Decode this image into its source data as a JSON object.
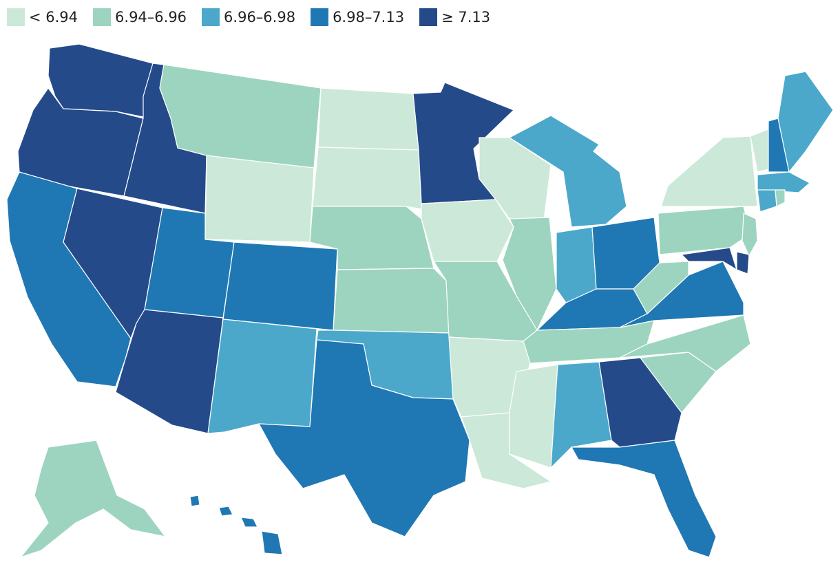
{
  "legend": [
    {
      "label": "< 6.94",
      "color": "#cce8d8"
    },
    {
      "label": "6.94–6.96",
      "color": "#9dd4c0"
    },
    {
      "label": "6.96–6.98",
      "color": "#4ba8cb"
    },
    {
      "label": "6.98–7.13",
      "color": "#1f78b4"
    },
    {
      "label": "≥ 7.13",
      "color": "#244a8a"
    }
  ],
  "states": {
    "WA": 4,
    "OR": 4,
    "ID": 4,
    "NV": 4,
    "AZ": 4,
    "MN": 4,
    "GA": 4,
    "MD": 4,
    "DE": 4,
    "CA": 3,
    "UT": 3,
    "CO": 3,
    "TX": 3,
    "OH": 3,
    "KY": 3,
    "VA": 3,
    "FL": 3,
    "NH": 3,
    "HI": 3,
    "NJ_coast": 3,
    "NM": 2,
    "OK": 2,
    "AL": 2,
    "IN": 2,
    "MI": 2,
    "ME": 2,
    "MA": 2,
    "CT": 2,
    "MT": 1,
    "NE": 1,
    "KS": 1,
    "MO": 1,
    "IL": 1,
    "TN": 1,
    "NC": 1,
    "SC": 1,
    "PA": 1,
    "WV": 1,
    "NJ": 1,
    "AK": 1,
    "RI": 1,
    "ND": 0,
    "SD": 0,
    "WY": 0,
    "WI": 0,
    "IA": 0,
    "AR": 0,
    "LA": 0,
    "MS": 0,
    "NY": 0,
    "VT": 0
  }
}
